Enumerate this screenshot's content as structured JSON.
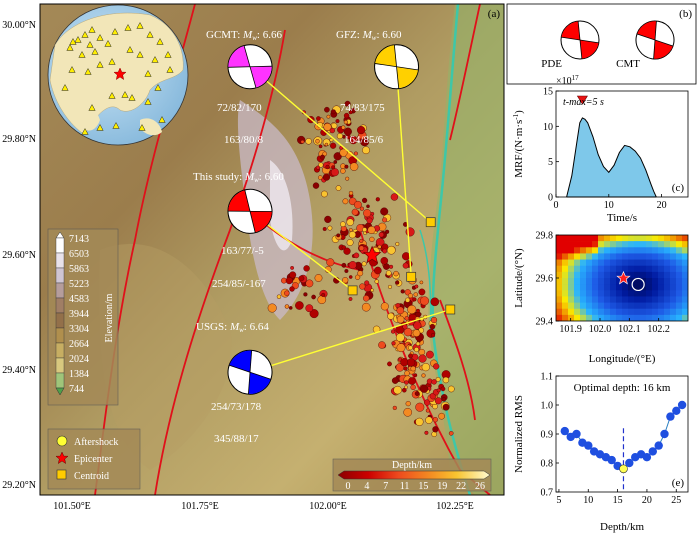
{
  "chart_data": [
    {
      "type": "map",
      "panel_label": "(a)",
      "x_ticks": [
        "101.50°E",
        "101.75°E",
        "102.00°E",
        "102.25°E"
      ],
      "y_ticks": [
        "30.00°N",
        "29.80°N",
        "29.60°N",
        "29.40°N",
        "29.20°N"
      ],
      "xlim": [
        101.4,
        102.35
      ],
      "ylim": [
        29.15,
        30.05
      ],
      "elevation_legend": {
        "title": "Elevation/m",
        "labels": [
          "7143",
          "6503",
          "5863",
          "5223",
          "4583",
          "3944",
          "3304",
          "2664",
          "2024",
          "1384",
          "744"
        ],
        "colors": [
          "#ffffff",
          "#e8e2ea",
          "#cfc5d3",
          "#b59d9c",
          "#a07e65",
          "#93704a",
          "#b08f4d",
          "#c7ae62",
          "#d8c87e",
          "#9fc57a",
          "#4ea04a"
        ]
      },
      "depth_legend": {
        "title": "Depth/km",
        "labels": [
          "0",
          "4",
          "7",
          "11",
          "15",
          "19",
          "22",
          "26"
        ],
        "colors": [
          "#8b0000",
          "#b00000",
          "#d81818",
          "#ee4b1e",
          "#f38a22",
          "#f9c430",
          "#fbe96a",
          "#fffbd0"
        ]
      },
      "symbol_legend": [
        "Aftershock",
        "Epicenter",
        "Centroid"
      ],
      "mechanisms": [
        {
          "agency": "GCMT: ",
          "mag_label": "M",
          "mag_sub": "w",
          "mag_value": ": 6.66",
          "nodal1": "72/82/170",
          "nodal2": "163/80/8",
          "color": "#ff33ff",
          "lon": 101.83,
          "lat": 29.935
        },
        {
          "agency": "GFZ: ",
          "mag_label": "M",
          "mag_sub": "w",
          "mag_value": ": 6.60",
          "nodal1": "74/83/175",
          "nodal2": "164/85/6",
          "color": "#ffd000",
          "lon": 102.13,
          "lat": 29.935
        },
        {
          "agency": "This study: ",
          "mag_label": "M",
          "mag_sub": "w",
          "mag_value": ": 6.60",
          "nodal1": "163/77/-5",
          "nodal2": "254/85/-167",
          "color": "#ff0000",
          "lon": 101.83,
          "lat": 29.67
        },
        {
          "agency": "USGS: ",
          "mag_label": "M",
          "mag_sub": "w",
          "mag_value": ": 6.64",
          "nodal1": "254/73/178",
          "nodal2": "345/88/17",
          "color": "#0000ff",
          "lon": 101.83,
          "lat": 29.375
        }
      ],
      "centroids": [
        {
          "lon": 102.2,
          "lat": 29.65
        },
        {
          "lon": 102.16,
          "lat": 29.55
        },
        {
          "lon": 102.04,
          "lat": 29.525
        },
        {
          "lon": 102.24,
          "lat": 29.49
        }
      ],
      "epicenter": {
        "lon": 102.08,
        "lat": 29.59
      }
    },
    {
      "type": "beachball-pair",
      "panel_label": "(b)",
      "labels": [
        "PDE",
        "CMT"
      ]
    },
    {
      "type": "area",
      "panel_label": "(c)",
      "exponent_label": "×10",
      "exponent_value": "17",
      "annotation": "t-max=5 s",
      "xlabel": "Time/s",
      "ylabel": "MRF/(N·m·s",
      "ylabel_sup": "-1",
      "ylabel_close": ")",
      "xlim": [
        0,
        25
      ],
      "ylim": [
        0,
        15
      ],
      "x_ticks": [
        "0",
        "10",
        "20"
      ],
      "y_ticks": [
        "0",
        "5",
        "10",
        "15"
      ],
      "peak_time": 5,
      "x": [
        2,
        3,
        4,
        4.5,
        5,
        5.5,
        6,
        7,
        8,
        9,
        10,
        11,
        12,
        13,
        14,
        15,
        16,
        17,
        18,
        18.5,
        19
      ],
      "y": [
        0,
        3,
        8,
        10.5,
        11.2,
        11,
        10.5,
        8.5,
        6,
        4.3,
        3.5,
        4.5,
        6.3,
        7.3,
        7.1,
        6.5,
        5.5,
        3.8,
        1.8,
        0.8,
        0
      ]
    },
    {
      "type": "heatmap",
      "panel_label": "(d)",
      "xlabel": "Longitude/(°E)",
      "ylabel": "Latitude/(°N)",
      "xlim": [
        101.85,
        102.3
      ],
      "ylim": [
        29.4,
        29.8
      ],
      "x_ticks": [
        "101.9",
        "102.0",
        "102.1",
        "102.2"
      ],
      "y_ticks": [
        "29.4",
        "29.6",
        "29.8"
      ],
      "best_fit": {
        "lon": 102.13,
        "lat": 29.57
      },
      "epicenter": {
        "lon": 102.08,
        "lat": 29.6
      }
    },
    {
      "type": "line",
      "panel_label": "(e)",
      "annotation": "Optimal depth: 16 km",
      "xlabel": "Depth/km",
      "ylabel": "Normalized RMS",
      "xlim": [
        4.5,
        27
      ],
      "ylim": [
        0.7,
        1.1
      ],
      "x_ticks": [
        "5",
        "10",
        "15",
        "20",
        "25"
      ],
      "y_ticks": [
        "0.7",
        "0.8",
        "0.9",
        "1.0",
        "1.1"
      ],
      "optimal_depth": 16,
      "x": [
        6,
        7,
        8,
        9,
        10,
        11,
        12,
        13,
        14,
        15,
        16,
        17,
        18,
        19,
        20,
        21,
        22,
        23,
        24,
        25,
        26
      ],
      "y": [
        0.91,
        0.89,
        0.9,
        0.87,
        0.86,
        0.84,
        0.83,
        0.82,
        0.81,
        0.79,
        0.78,
        0.8,
        0.82,
        0.83,
        0.82,
        0.84,
        0.86,
        0.9,
        0.96,
        0.98,
        1.0
      ]
    }
  ]
}
